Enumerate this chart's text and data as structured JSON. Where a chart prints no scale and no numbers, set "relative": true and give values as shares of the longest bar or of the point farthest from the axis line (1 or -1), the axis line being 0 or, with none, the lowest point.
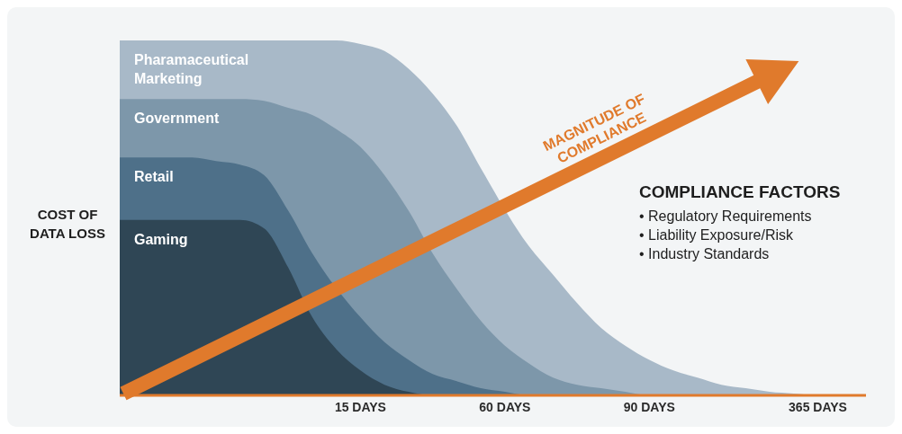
{
  "chart_data": {
    "type": "area",
    "relative": true,
    "ylabel": "COST OF DATA LOSS",
    "categories": [
      null,
      null,
      null,
      null,
      null,
      null,
      null,
      null,
      null,
      null,
      "15 DAYS",
      null,
      null,
      null,
      null,
      null,
      "60 DAYS",
      null,
      null,
      null,
      null,
      null,
      "90 DAYS",
      null,
      null,
      null,
      null,
      null,
      null,
      "365 DAYS",
      null,
      null
    ],
    "series": [
      {
        "name": "Pharamaceutical Marketing",
        "color": "#a8b9c8",
        "values": [
          1,
          1,
          1,
          1,
          1,
          1,
          1,
          1,
          1,
          1,
          0.99,
          0.97,
          0.92,
          0.85,
          0.76,
          0.64,
          null,
          0.42,
          0.34,
          0.26,
          0.19,
          0.14,
          0.1,
          0.07,
          0.05,
          0.03,
          0.02,
          0.01,
          0.005,
          0,
          0,
          0
        ]
      },
      {
        "name": "Government",
        "color": "#7d97aa",
        "values": [
          0.835,
          0.835,
          0.835,
          0.835,
          0.835,
          0.835,
          0.83,
          0.81,
          0.79,
          0.75,
          0.7,
          0.62,
          0.52,
          0.4,
          0.3,
          0.21,
          0.14,
          0.09,
          0.05,
          0.03,
          0.02,
          0.01,
          0,
          0,
          0,
          0,
          0,
          0,
          0,
          0,
          0,
          0
        ]
      },
      {
        "name": "Retail",
        "color": "#4e7089",
        "values": [
          0.67,
          0.67,
          0.67,
          0.67,
          0.66,
          0.65,
          0.62,
          0.52,
          0.4,
          null,
          0.22,
          0.15,
          0.1,
          0.06,
          0.04,
          0.02,
          0.01,
          0,
          0,
          0,
          0,
          0,
          0,
          0,
          0,
          0,
          0,
          0,
          0,
          0,
          0,
          0
        ]
      },
      {
        "name": "Gaming",
        "color": "#2f4655",
        "values": [
          0.494,
          0.494,
          0.494,
          0.494,
          0.494,
          0.494,
          0.47,
          0.36,
          0.22,
          0.13,
          0.07,
          0.03,
          0.01,
          0,
          0,
          0,
          0,
          0,
          0,
          0,
          0,
          0,
          0,
          0,
          0,
          0,
          0,
          0,
          0,
          0,
          0,
          0
        ]
      }
    ],
    "annotations": [
      "MAGNITUDE OF COMPLIANCE",
      "COMPLIANCE FACTORS",
      "• Regulatory Requirements",
      "• Liability Exposure/Risk",
      "• Industry Standards"
    ],
    "grid": false,
    "legend": false
  }
}
